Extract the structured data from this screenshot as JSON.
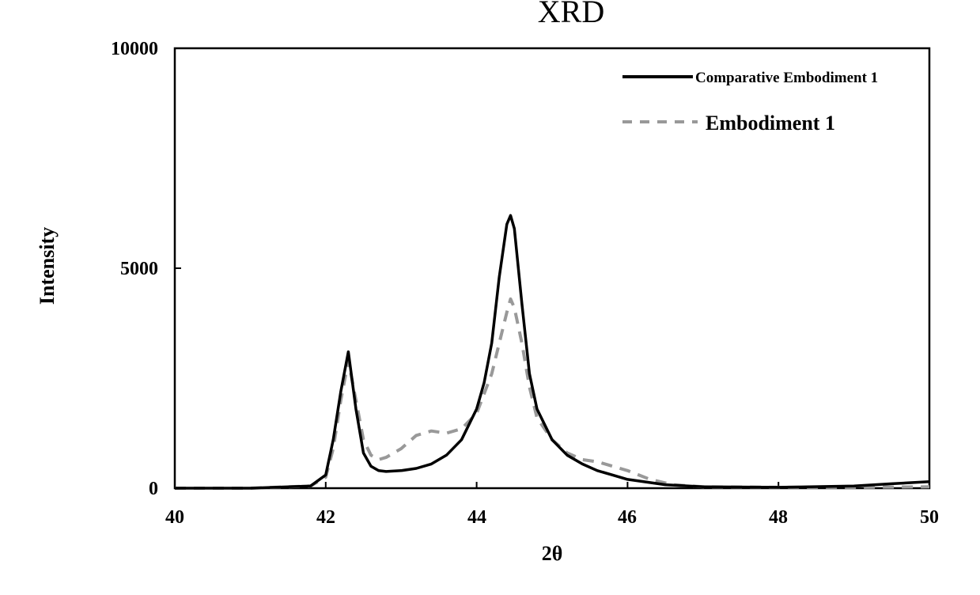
{
  "chart_data": {
    "type": "line",
    "title": "XRD",
    "xlabel": "2θ",
    "ylabel": "Intensity",
    "xlim": [
      40,
      50
    ],
    "ylim": [
      0,
      10000
    ],
    "x_ticks": [
      "40",
      "42",
      "44",
      "46",
      "48",
      "50"
    ],
    "y_ticks": [
      "0",
      "5000",
      "10000"
    ],
    "grid": false,
    "legend_position": "top-right",
    "series": [
      {
        "name": "Comparative Embodiment 1",
        "style": "solid",
        "color": "#000000",
        "x": [
          40.0,
          41.0,
          41.8,
          42.0,
          42.1,
          42.2,
          42.3,
          42.4,
          42.5,
          42.6,
          42.7,
          42.8,
          43.0,
          43.2,
          43.4,
          43.6,
          43.8,
          44.0,
          44.1,
          44.2,
          44.3,
          44.4,
          44.45,
          44.5,
          44.6,
          44.7,
          44.8,
          45.0,
          45.2,
          45.4,
          45.6,
          45.8,
          46.0,
          46.5,
          47.0,
          48.0,
          49.0,
          49.5,
          50.0
        ],
        "y": [
          0,
          0,
          50,
          300,
          1100,
          2200,
          3100,
          1800,
          800,
          500,
          400,
          380,
          400,
          450,
          550,
          750,
          1100,
          1800,
          2400,
          3300,
          4800,
          6000,
          6200,
          5900,
          4200,
          2600,
          1800,
          1100,
          750,
          550,
          400,
          300,
          200,
          80,
          30,
          20,
          50,
          100,
          150
        ]
      },
      {
        "name": "Embodiment 1",
        "style": "dashed",
        "color": "#999999",
        "x": [
          40.0,
          41.0,
          41.8,
          42.0,
          42.1,
          42.2,
          42.3,
          42.4,
          42.5,
          42.6,
          42.7,
          42.8,
          43.0,
          43.2,
          43.4,
          43.6,
          43.8,
          44.0,
          44.2,
          44.4,
          44.45,
          44.5,
          44.6,
          44.7,
          44.8,
          45.0,
          45.2,
          45.4,
          45.6,
          45.8,
          46.0,
          46.3,
          46.6,
          47.0,
          48.0,
          49.0,
          50.0
        ],
        "y": [
          0,
          0,
          50,
          250,
          900,
          2000,
          2900,
          2000,
          1100,
          750,
          650,
          700,
          900,
          1200,
          1300,
          1250,
          1350,
          1700,
          2600,
          4000,
          4300,
          4100,
          3300,
          2300,
          1600,
          1100,
          800,
          650,
          600,
          500,
          400,
          200,
          80,
          30,
          20,
          20,
          30
        ]
      }
    ]
  }
}
